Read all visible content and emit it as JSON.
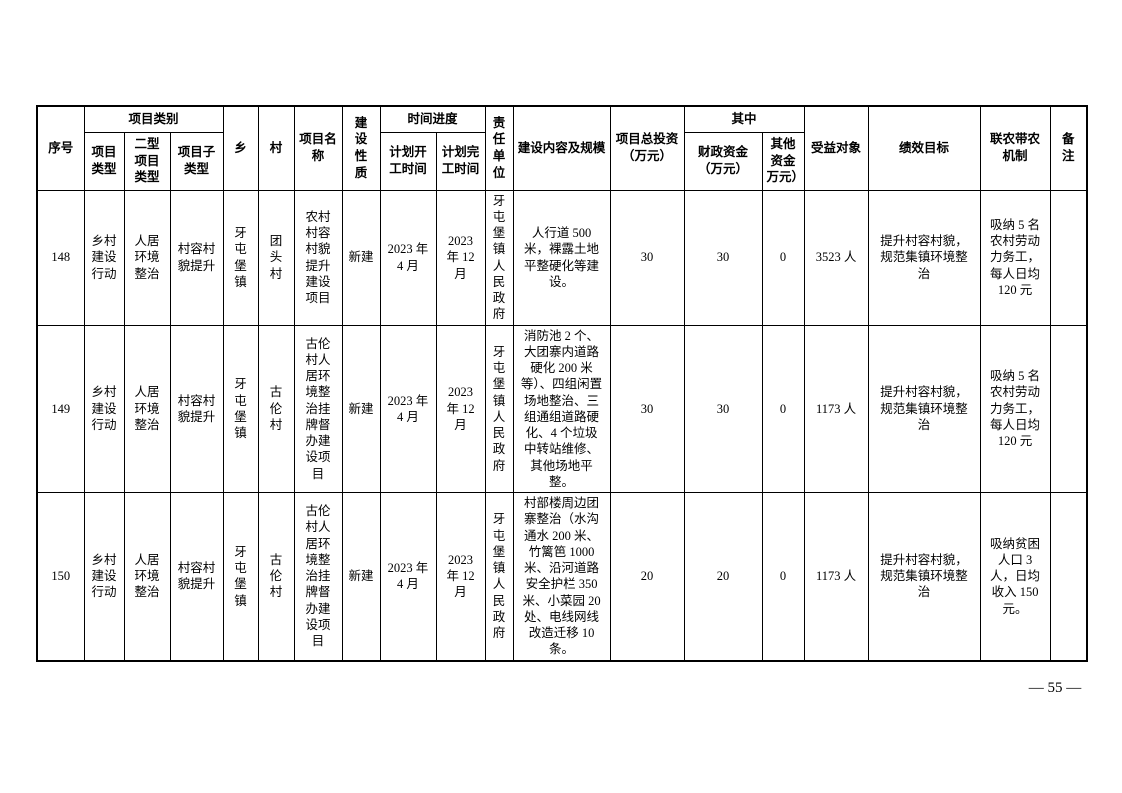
{
  "page": {
    "page_number": "— 55 —"
  },
  "table": {
    "header": {
      "xuhao": "序号",
      "leibie_group": "项目类别",
      "leixing": "项目类型",
      "erxing": "二型项目类型",
      "zilei": "项目子类型",
      "xiang": "乡",
      "cun": "村",
      "mingcheng": "项目名称",
      "xingzhi": "建设性质",
      "shijian_group": "时间进度",
      "kaigong": "计划开工时间",
      "wangong": "计划完工时间",
      "zeren": "责任单位",
      "neirong": "建设内容及规模",
      "touzi": "项目总投资（万元）",
      "qizhong_group": "其中",
      "caizheng": "财政资金（万元）",
      "qita": "其他资金万元）",
      "shouyi": "受益对象",
      "jixiao": "绩效目标",
      "liannong": "联农带农机制",
      "beizhu": "备注"
    },
    "rows": [
      {
        "xuhao": "148",
        "leixing": "乡村建设行动",
        "erxing": "人居环境整治",
        "zilei": "村容村貌提升",
        "xiang": "牙屯堡镇",
        "cun": "团头村",
        "mingcheng": "农村村容村貌提升建设项目",
        "xingzhi": "新建",
        "kaigong": "2023 年 4 月",
        "wangong": "2023 年 12 月",
        "zeren": "牙屯堡镇人民政府",
        "neirong": "人行道 500 米，裸露土地平整硬化等建设。",
        "touzi": "30",
        "caizheng": "30",
        "qita": "0",
        "shouyi": "3523 人",
        "jixiao": "提升村容村貌，规范集镇环境整治",
        "liannong": "吸纳 5 名农村劳动力务工，每人日均 120 元",
        "beizhu": ""
      },
      {
        "xuhao": "149",
        "leixing": "乡村建设行动",
        "erxing": "人居环境整治",
        "zilei": "村容村貌提升",
        "xiang": "牙屯堡镇",
        "cun": "古伦村",
        "mingcheng": "古伦村人居环境整治挂牌督办建设项目",
        "xingzhi": "新建",
        "kaigong": "2023 年 4 月",
        "wangong": "2023 年 12 月",
        "zeren": "牙屯堡镇人民政府",
        "neirong": "消防池 2 个、大团寨内道路硬化 200 米等）、四组闲置场地整治、三组通组道路硬化、4 个垃圾中转站维修、其他场地平整。",
        "touzi": "30",
        "caizheng": "30",
        "qita": "0",
        "shouyi": "1173 人",
        "jixiao": "提升村容村貌，规范集镇环境整治",
        "liannong": "吸纳 5 名农村劳动力务工，每人日均 120 元",
        "beizhu": ""
      },
      {
        "xuhao": "150",
        "leixing": "乡村建设行动",
        "erxing": "人居环境整治",
        "zilei": "村容村貌提升",
        "xiang": "牙屯堡镇",
        "cun": "古伦村",
        "mingcheng": "古伦村人居环境整治挂牌督办建设项目",
        "xingzhi": "新建",
        "kaigong": "2023 年 4 月",
        "wangong": "2023 年 12 月",
        "zeren": "牙屯堡镇人民政府",
        "neirong": "村部楼周边团寨整治（水沟通水 200 米、竹篱笆 1000 米、沿河道路安全护栏 350 米、小菜园 20 处、电线网线改造迁移 10 条。",
        "touzi": "20",
        "caizheng": "20",
        "qita": "0",
        "shouyi": "1173 人",
        "jixiao": "提升村容村貌，规范集镇环境整治",
        "liannong": "吸纳贫困人口 3 人，日均收入 150 元。",
        "beizhu": ""
      }
    ]
  }
}
